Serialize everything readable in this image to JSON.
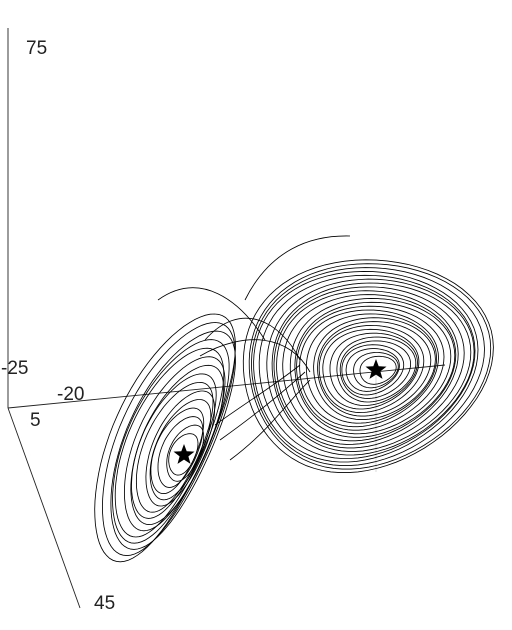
{
  "chart_data": {
    "type": "line",
    "title": "",
    "xlabel": "",
    "ylabel": "",
    "zlabel": "",
    "projection": "3d",
    "grid": false,
    "legend": "none",
    "colors": {
      "trajectory": "#000000",
      "axes": "#222222",
      "markers": "#000000"
    },
    "axes": {
      "z": {
        "range": [
          -25,
          75
        ],
        "tick_labels": [
          "-25",
          "75"
        ]
      },
      "x": {
        "range": [
          -20,
          20
        ],
        "tick_labels": [
          "-20"
        ]
      },
      "y": {
        "range": [
          5,
          45
        ],
        "tick_labels": [
          "5",
          "45"
        ]
      }
    },
    "series": [
      {
        "marker": "line",
        "description_values": {
          "lobes": [
            {
              "center": [
                -8.5,
                8.5,
                27
              ],
              "loops": 15
            },
            {
              "center": [
                8.5,
                8.5,
                27
              ],
              "loops": 26
            }
          ]
        }
      }
    ],
    "fixed_points": [
      {
        "marker": "star",
        "x": -8.5,
        "y": 8.5,
        "z": 27
      },
      {
        "marker": "star",
        "x": 8.5,
        "y": 8.5,
        "z": 27
      }
    ]
  }
}
